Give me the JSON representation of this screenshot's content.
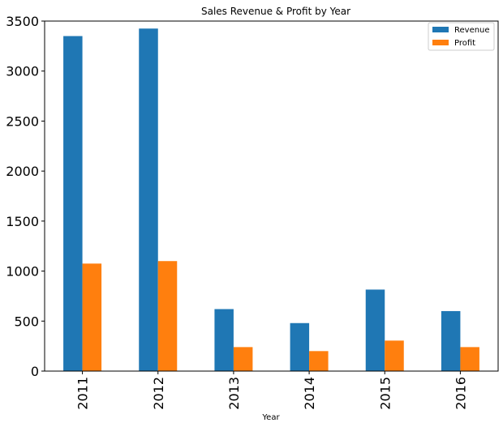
{
  "chart_data": {
    "type": "bar",
    "title": "Sales Revenue & Profit by Year",
    "xlabel": "Year",
    "ylabel": "",
    "categories": [
      "2011",
      "2012",
      "2013",
      "2014",
      "2015",
      "2016"
    ],
    "series": [
      {
        "name": "Revenue",
        "color": "#1f77b4",
        "values": [
          3350,
          3425,
          620,
          480,
          815,
          600
        ]
      },
      {
        "name": "Profit",
        "color": "#ff7f0e",
        "values": [
          1075,
          1100,
          240,
          200,
          305,
          240
        ]
      }
    ],
    "ylim": [
      0,
      3500
    ],
    "yticks": [
      "0",
      "500",
      "1000",
      "1500",
      "2000",
      "2500",
      "3000",
      "3500"
    ],
    "grid": false,
    "legend_position": "top-right"
  }
}
